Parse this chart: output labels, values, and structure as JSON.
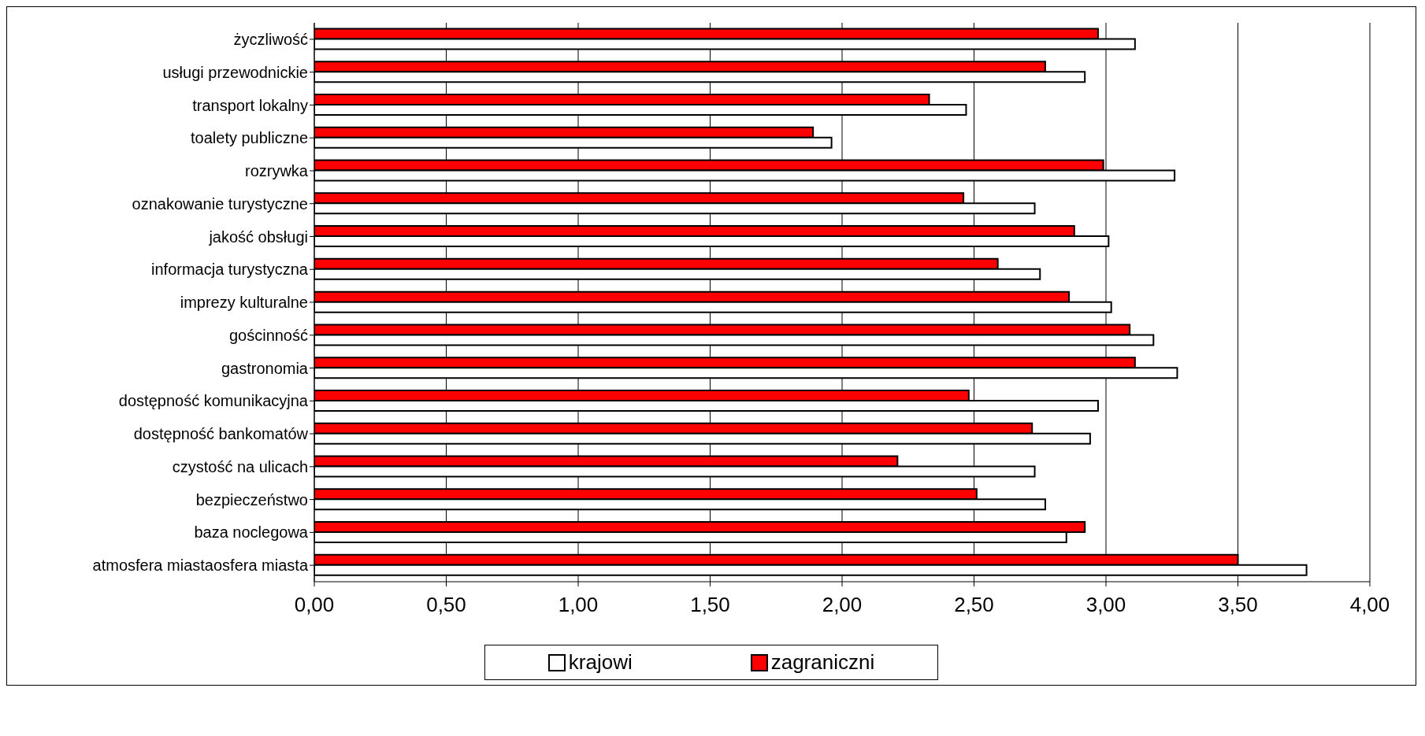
{
  "chart_data": {
    "type": "bar",
    "orientation": "horizontal",
    "categories": [
      "życzliwość",
      "usługi przewodnickie",
      "transport lokalny",
      "toalety publiczne",
      "rozrywka",
      "oznakowanie turystyczne",
      "jakość obsługi",
      "informacja turystyczna",
      "imprezy kulturalne",
      "gościnność",
      "gastronomia",
      "dostępność komunikacyjna",
      "dostępność bankomatów",
      "czystość na ulicach",
      "bezpieczeństwo",
      "baza noclegowa",
      "atmosfera miastaosfera miasta"
    ],
    "series": [
      {
        "name": "krajowi",
        "color": "#ffffff",
        "values": [
          3.11,
          2.92,
          2.47,
          1.96,
          3.26,
          2.73,
          3.01,
          2.75,
          3.02,
          3.18,
          3.27,
          2.97,
          2.94,
          2.73,
          2.77,
          2.85,
          3.76
        ]
      },
      {
        "name": "zagraniczni",
        "color": "#ff0000",
        "values": [
          2.97,
          2.77,
          2.33,
          1.89,
          2.99,
          2.46,
          2.88,
          2.59,
          2.86,
          3.09,
          3.11,
          2.48,
          2.72,
          2.21,
          2.51,
          2.92,
          3.5
        ]
      }
    ],
    "xlim": [
      0,
      4
    ],
    "xticks": [
      {
        "value": 0,
        "label": "0,00"
      },
      {
        "value": 0.5,
        "label": "0,50"
      },
      {
        "value": 1,
        "label": "1,00"
      },
      {
        "value": 1.5,
        "label": "1,50"
      },
      {
        "value": 2,
        "label": "2,00"
      },
      {
        "value": 2.5,
        "label": "2,50"
      },
      {
        "value": 3,
        "label": "3,00"
      },
      {
        "value": 3.5,
        "label": "3,50"
      },
      {
        "value": 4,
        "label": "4,00"
      }
    ],
    "grid": "x",
    "legend": "bottom"
  }
}
